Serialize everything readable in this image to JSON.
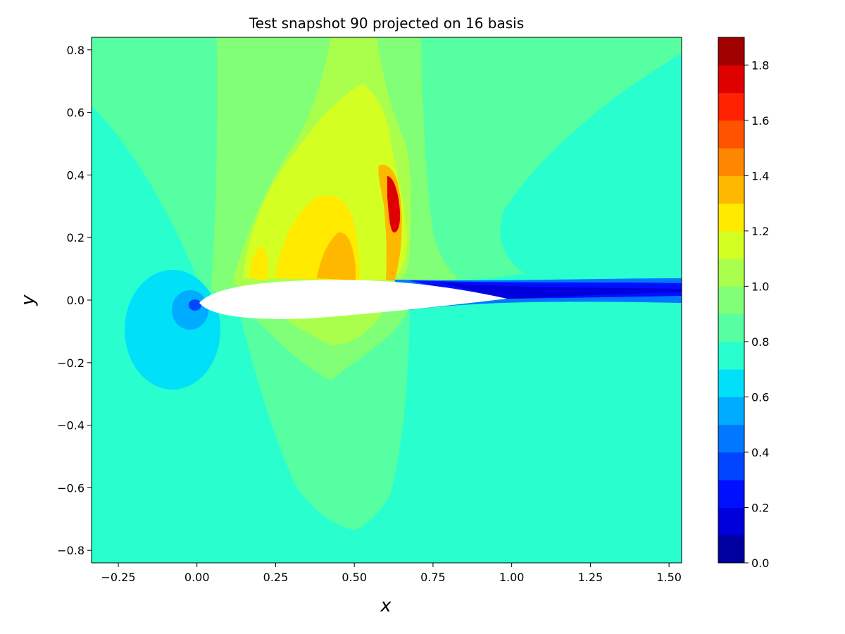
{
  "chart_data": {
    "type": "heatmap",
    "title": "Test snapshot 90 projected on 16 basis",
    "xlabel": "x",
    "ylabel": "y",
    "xlim": [
      -0.335,
      1.54
    ],
    "ylim": [
      -0.84,
      0.84
    ],
    "x_ticks": [
      -0.25,
      0.0,
      0.25,
      0.5,
      0.75,
      1.0,
      1.25,
      1.5
    ],
    "y_ticks": [
      -0.8,
      -0.6,
      -0.4,
      -0.2,
      0.0,
      0.2,
      0.4,
      0.6,
      0.8
    ],
    "x_tick_labels": [
      "−0.25",
      "0.00",
      "0.25",
      "0.50",
      "0.75",
      "1.00",
      "1.25",
      "1.50"
    ],
    "y_tick_labels": [
      "−0.8",
      "−0.6",
      "−0.4",
      "−0.2",
      "0.0",
      "0.2",
      "0.4",
      "0.6",
      "0.8"
    ],
    "colorbar": {
      "min": 0.0,
      "max": 1.9,
      "levels": 19,
      "ticks": [
        0.0,
        0.2,
        0.4,
        0.6,
        0.8,
        1.0,
        1.2,
        1.4,
        1.6,
        1.8
      ],
      "tick_labels": [
        "0.0",
        "0.2",
        "0.4",
        "0.6",
        "0.8",
        "1.0",
        "1.2",
        "1.4",
        "1.6",
        "1.8"
      ],
      "colors": [
        "#00009f",
        "#0000dc",
        "#0010ff",
        "#0044ff",
        "#0078ff",
        "#00acff",
        "#00e0f9",
        "#29ffce",
        "#56ffa1",
        "#80ff77",
        "#aaff4d",
        "#d4ff23",
        "#ffea00",
        "#ffb800",
        "#ff8600",
        "#ff5300",
        "#ff2100",
        "#df0000",
        "#9f0000"
      ],
      "colormap": "jet"
    },
    "regions": [
      {
        "name": "background",
        "value": 0.8
      },
      {
        "name": "upper-freestream",
        "value": 0.9
      },
      {
        "name": "suction-band",
        "value": 1.0
      },
      {
        "name": "suction-core",
        "value": 1.1
      },
      {
        "name": "suction-peak",
        "value": 1.2
      },
      {
        "name": "supersonic-pocket",
        "value": 1.25
      },
      {
        "name": "shock-hotspot",
        "value": 1.3
      },
      {
        "name": "shock-core",
        "value": 1.8
      },
      {
        "name": "lower-surface-band",
        "value": 0.9
      },
      {
        "name": "stagnation-outer",
        "value": 0.65
      },
      {
        "name": "stagnation-mid",
        "value": 0.55
      },
      {
        "name": "stagnation-inner",
        "value": 0.35
      },
      {
        "name": "wake",
        "value": 0.1
      },
      {
        "name": "airfoil",
        "value": null
      }
    ]
  }
}
